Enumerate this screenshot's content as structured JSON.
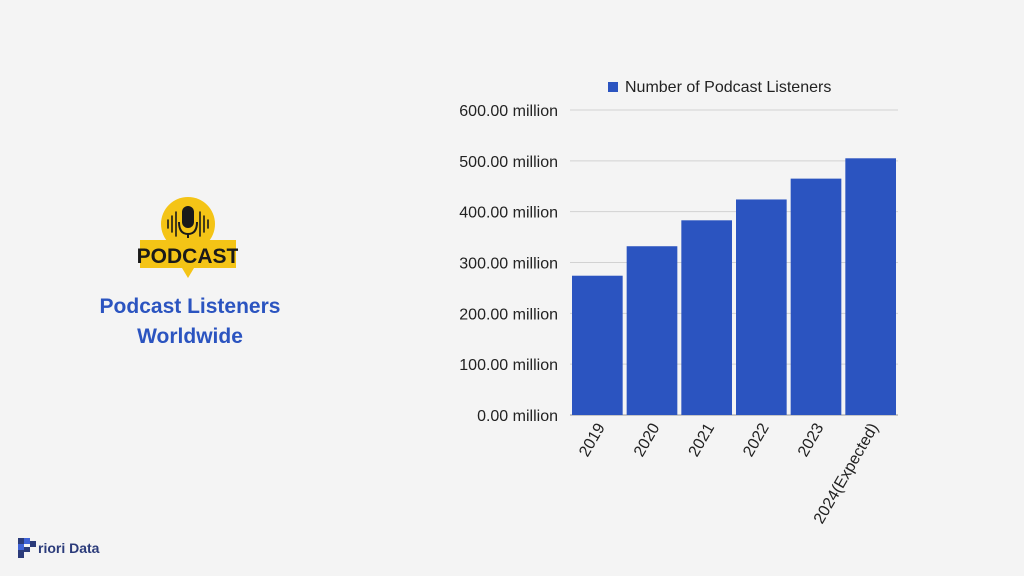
{
  "sidebar": {
    "logo_text": "PODCAST",
    "title": "Podcast Listeners Worldwide"
  },
  "brand": {
    "name": "riori Data"
  },
  "colors": {
    "accent": "#2b54c0",
    "bar": "#2b54c0",
    "logo_yellow": "#f4c416",
    "background": "#f4f4f4"
  },
  "chart_data": {
    "type": "bar",
    "categories": [
      "2019",
      "2020",
      "2021",
      "2022",
      "2023",
      "2024(Expected)"
    ],
    "series": [
      {
        "name": "Number of Podcast Listeners",
        "values": [
          274,
          332,
          383,
          424,
          465,
          505
        ]
      }
    ],
    "ylim": [
      0,
      600
    ],
    "yticks": [
      0,
      100,
      200,
      300,
      400,
      500,
      600
    ],
    "ytick_labels": [
      "0.00 million",
      "100.00 million",
      "200.00 million",
      "300.00 million",
      "400.00 million",
      "500.00 million",
      "600.00 million"
    ],
    "grid": true,
    "legend_position": "top"
  }
}
